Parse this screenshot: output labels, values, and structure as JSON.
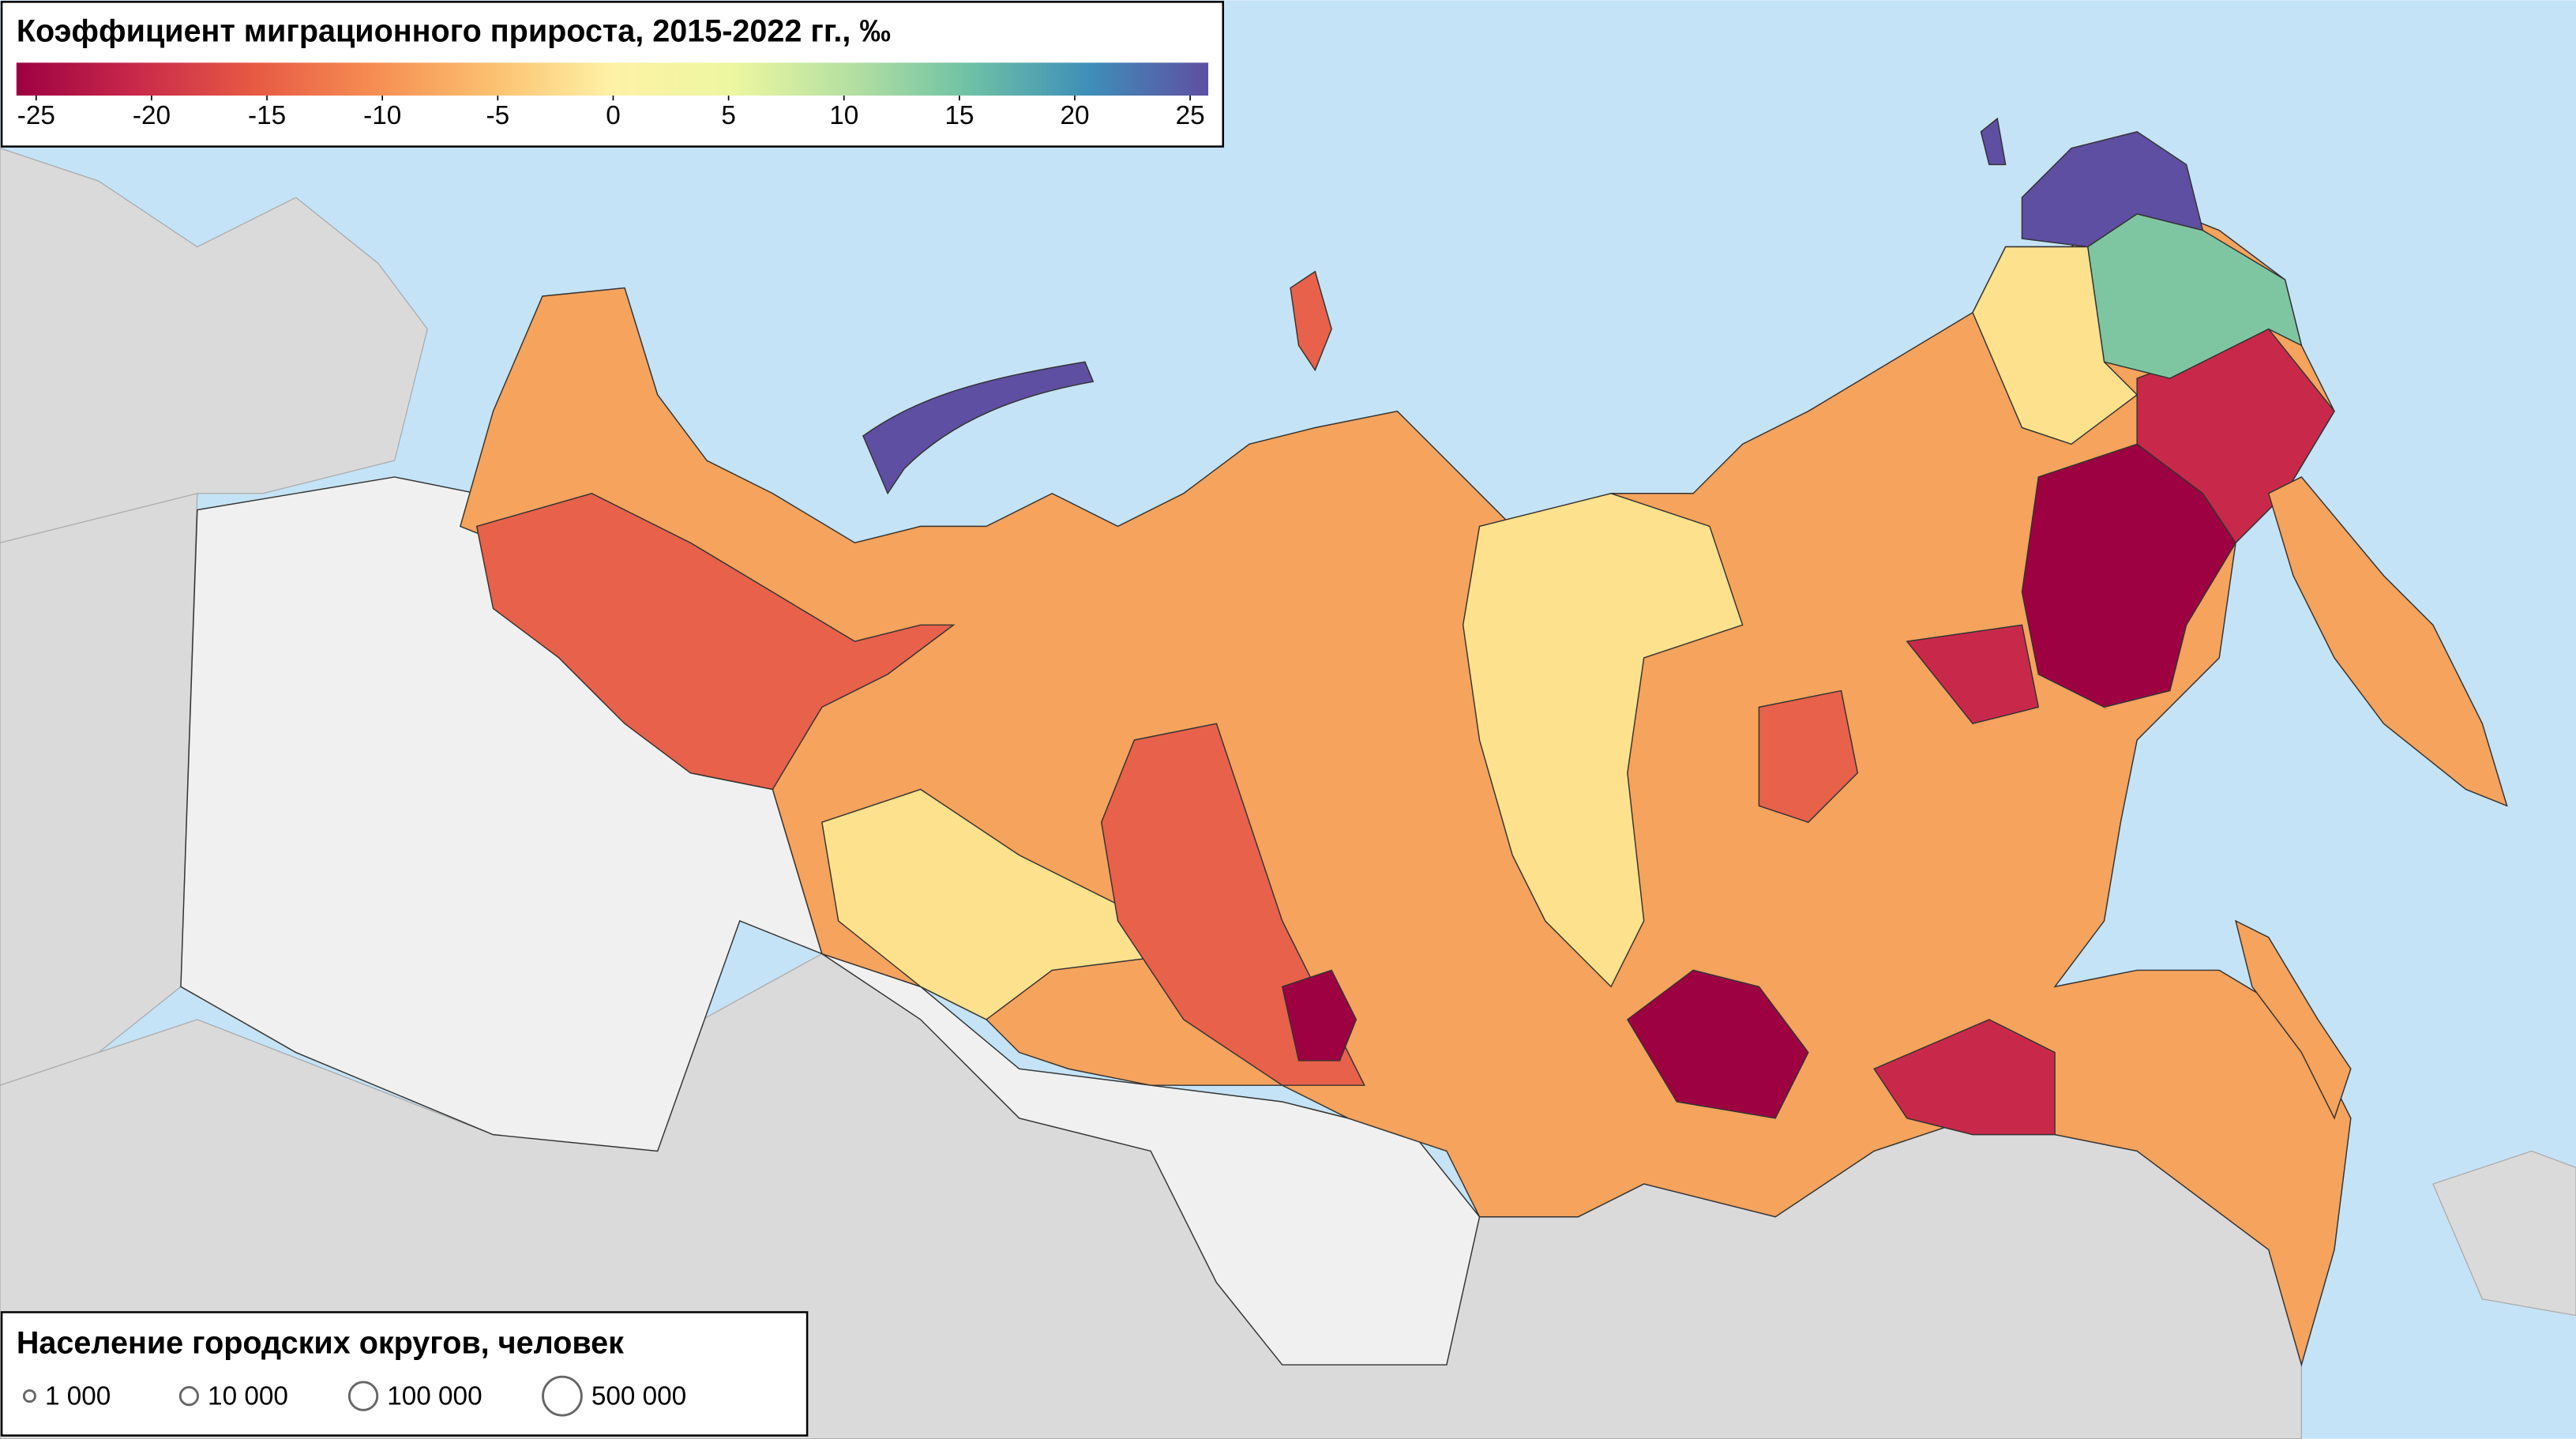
{
  "title": "Коэффициент миграционного прироста, 2015-2022 гг., ‰",
  "colorbar": {
    "lim": [
      -25,
      25
    ],
    "ticks": [
      -25,
      -20,
      -15,
      -10,
      -5,
      0,
      5,
      10,
      15,
      20,
      25
    ],
    "colors": [
      "#9e0142",
      "#c8294a",
      "#e75a44",
      "#f68d52",
      "#fbc170",
      "#fef2a6",
      "#edf7a0",
      "#b5e0a2",
      "#6ec1a5",
      "#3e8fb8",
      "#5e4fa2"
    ]
  },
  "legend": {
    "title": "Население городских округов, человек",
    "entries": [
      {
        "value": 1000,
        "label": "1 000"
      },
      {
        "value": 10000,
        "label": "10 000"
      },
      {
        "value": 100000,
        "label": "100 000"
      },
      {
        "value": 500000,
        "label": "500 000"
      }
    ]
  }
}
